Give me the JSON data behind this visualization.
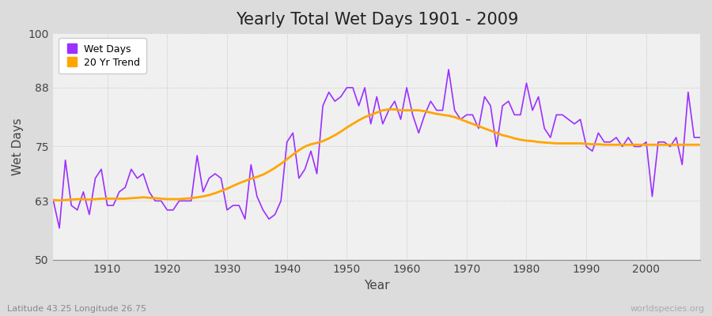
{
  "title": "Yearly Total Wet Days 1901 - 2009",
  "xlabel": "Year",
  "ylabel": "Wet Days",
  "subtitle": "Latitude 43.25 Longitude 26.75",
  "watermark": "worldspecies.org",
  "ylim": [
    50,
    100
  ],
  "yticks": [
    50,
    63,
    75,
    88,
    100
  ],
  "xlim": [
    1901,
    2009
  ],
  "xticks": [
    1910,
    1920,
    1930,
    1940,
    1950,
    1960,
    1970,
    1980,
    1990,
    2000
  ],
  "wet_days_color": "#9B30FF",
  "trend_color": "#FFA500",
  "background_color": "#DCDCDC",
  "axes_background": "#F0F0F0",
  "legend_wet": "Wet Days",
  "legend_trend": "20 Yr Trend",
  "years": [
    1901,
    1902,
    1903,
    1904,
    1905,
    1906,
    1907,
    1908,
    1909,
    1910,
    1911,
    1912,
    1913,
    1914,
    1915,
    1916,
    1917,
    1918,
    1919,
    1920,
    1921,
    1922,
    1923,
    1924,
    1925,
    1926,
    1927,
    1928,
    1929,
    1930,
    1931,
    1932,
    1933,
    1934,
    1935,
    1936,
    1937,
    1938,
    1939,
    1940,
    1941,
    1942,
    1943,
    1944,
    1945,
    1946,
    1947,
    1948,
    1949,
    1950,
    1951,
    1952,
    1953,
    1954,
    1955,
    1956,
    1957,
    1958,
    1959,
    1960,
    1961,
    1962,
    1963,
    1964,
    1965,
    1966,
    1967,
    1968,
    1969,
    1970,
    1971,
    1972,
    1973,
    1974,
    1975,
    1976,
    1977,
    1978,
    1979,
    1980,
    1981,
    1982,
    1983,
    1984,
    1985,
    1986,
    1987,
    1988,
    1989,
    1990,
    1991,
    1992,
    1993,
    1994,
    1995,
    1996,
    1997,
    1998,
    1999,
    2000,
    2001,
    2002,
    2003,
    2004,
    2005,
    2006,
    2007,
    2008,
    2009
  ],
  "wet_days": [
    63,
    57,
    72,
    62,
    61,
    65,
    60,
    68,
    70,
    62,
    62,
    65,
    66,
    70,
    68,
    69,
    65,
    63,
    63,
    61,
    61,
    63,
    63,
    63,
    73,
    65,
    68,
    69,
    68,
    61,
    62,
    62,
    59,
    71,
    64,
    61,
    59,
    60,
    63,
    76,
    78,
    68,
    70,
    74,
    69,
    84,
    87,
    85,
    86,
    88,
    88,
    84,
    88,
    80,
    86,
    80,
    83,
    85,
    81,
    88,
    82,
    78,
    82,
    85,
    83,
    83,
    92,
    83,
    81,
    82,
    82,
    79,
    86,
    84,
    75,
    84,
    85,
    82,
    82,
    89,
    83,
    86,
    79,
    77,
    82,
    82,
    81,
    80,
    81,
    75,
    74,
    78,
    76,
    76,
    77,
    75,
    77,
    75,
    75,
    76,
    64,
    76,
    76,
    75,
    77,
    71,
    87,
    77,
    77
  ],
  "trend_years": [
    1901,
    1902,
    1903,
    1904,
    1905,
    1906,
    1907,
    1908,
    1909,
    1910,
    1911,
    1912,
    1913,
    1914,
    1915,
    1916,
    1917,
    1918,
    1919,
    1920,
    1921,
    1922,
    1923,
    1924,
    1925,
    1926,
    1927,
    1928,
    1929,
    1930,
    1931,
    1932,
    1933,
    1934,
    1935,
    1936,
    1937,
    1938,
    1939,
    1940,
    1941,
    1942,
    1943,
    1944,
    1945,
    1946,
    1947,
    1948,
    1949,
    1950,
    1951,
    1952,
    1953,
    1954,
    1955,
    1956,
    1957,
    1958,
    1959,
    1960,
    1961,
    1962,
    1963,
    1964,
    1965,
    1966,
    1967,
    1968,
    1969,
    1970,
    1971,
    1972,
    1973,
    1974,
    1975,
    1976,
    1977,
    1978,
    1979,
    1980,
    1981,
    1982,
    1983,
    1984,
    1985,
    1986,
    1987,
    1988,
    1989,
    1990,
    1991,
    1992,
    1993,
    1994,
    1995,
    1996,
    1997,
    1998,
    1999,
    2000,
    2001,
    2002,
    2003,
    2004,
    2005,
    2006,
    2007,
    2008,
    2009
  ],
  "trend_values": [
    63.2,
    63.1,
    63.2,
    63.3,
    63.4,
    63.4,
    63.3,
    63.4,
    63.5,
    63.5,
    63.5,
    63.5,
    63.5,
    63.6,
    63.7,
    63.8,
    63.7,
    63.6,
    63.5,
    63.4,
    63.4,
    63.4,
    63.5,
    63.6,
    63.8,
    64.0,
    64.3,
    64.7,
    65.2,
    65.7,
    66.3,
    66.9,
    67.4,
    67.9,
    68.3,
    68.8,
    69.5,
    70.3,
    71.2,
    72.2,
    73.2,
    74.2,
    75.0,
    75.5,
    75.8,
    76.2,
    76.8,
    77.5,
    78.3,
    79.2,
    80.0,
    80.8,
    81.5,
    82.0,
    82.5,
    83.0,
    83.2,
    83.2,
    83.0,
    83.0,
    83.0,
    83.0,
    82.8,
    82.5,
    82.2,
    82.0,
    81.8,
    81.5,
    81.0,
    80.5,
    80.0,
    79.5,
    79.0,
    78.5,
    78.0,
    77.5,
    77.2,
    76.8,
    76.5,
    76.3,
    76.2,
    76.0,
    75.9,
    75.8,
    75.7,
    75.7,
    75.7,
    75.7,
    75.7,
    75.6,
    75.5,
    75.5,
    75.4,
    75.4,
    75.4,
    75.4,
    75.4,
    75.4,
    75.4,
    75.4,
    75.4,
    75.4,
    75.4,
    75.4,
    75.4,
    75.4,
    75.4,
    75.4,
    75.4
  ]
}
